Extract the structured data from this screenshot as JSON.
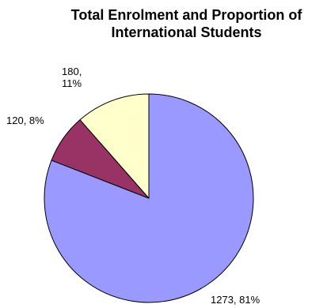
{
  "chart_data": {
    "type": "pie",
    "title_lines": [
      "Total Enrolment and Proportion of",
      "International Students"
    ],
    "slices": [
      {
        "value": 1273,
        "percent": "81%",
        "label": "1273, 81%",
        "color": "#9999ff"
      },
      {
        "value": 120,
        "percent": "8%",
        "label": "120, 8%",
        "color": "#993366"
      },
      {
        "value": 180,
        "percent": "11%",
        "label_lines": [
          "180,",
          "11%"
        ],
        "color": "#ffffcc"
      }
    ],
    "start_angle": "12 o'clock",
    "direction": "clockwise"
  }
}
